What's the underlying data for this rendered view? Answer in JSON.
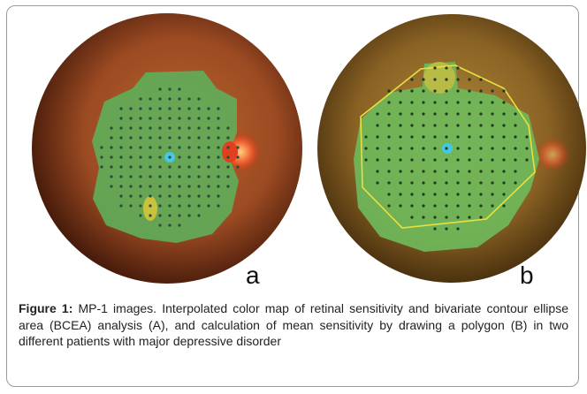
{
  "figure": {
    "panels": [
      {
        "label": "a"
      },
      {
        "label": "b"
      }
    ],
    "caption": {
      "label": "Figure 1:",
      "text": " MP-1 images. Interpolated color map of retinal sensitivity and bivariate contour ellipse area (BCEA) analysis (A), and calculation of mean sensitivity by drawing a polygon (B) in two different patients with major depressive disorder"
    }
  }
}
